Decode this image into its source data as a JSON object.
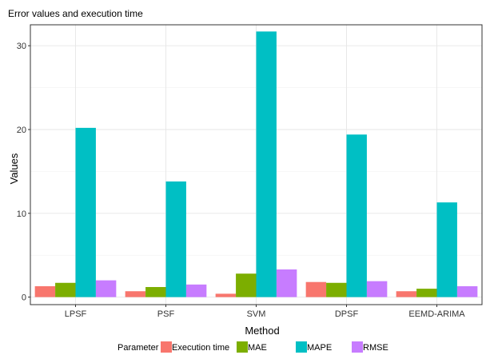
{
  "chart_data": {
    "type": "bar",
    "title": "Error values and execution time",
    "xlabel": "Method",
    "ylabel": "Values",
    "categories": [
      "LPSF",
      "PSF",
      "SVM",
      "DPSF",
      "EEMD-ARIMA"
    ],
    "ylim": [
      -0.9,
      32.5
    ],
    "yticks": [
      0,
      10,
      20,
      30
    ],
    "grid": true,
    "legend": {
      "title": "Parameter",
      "position": "bottom"
    },
    "series": [
      {
        "name": "Execution time",
        "color": "#F8766D",
        "values": [
          1.3,
          0.7,
          0.4,
          1.8,
          0.7
        ]
      },
      {
        "name": "MAE",
        "color": "#7CAE00",
        "values": [
          1.7,
          1.2,
          2.8,
          1.7,
          1.0
        ]
      },
      {
        "name": "MAPE",
        "color": "#00BFC4",
        "values": [
          20.2,
          13.8,
          31.7,
          19.4,
          11.3
        ]
      },
      {
        "name": "RMSE",
        "color": "#C77CFF",
        "values": [
          2.0,
          1.5,
          3.3,
          1.9,
          1.3
        ]
      }
    ]
  }
}
